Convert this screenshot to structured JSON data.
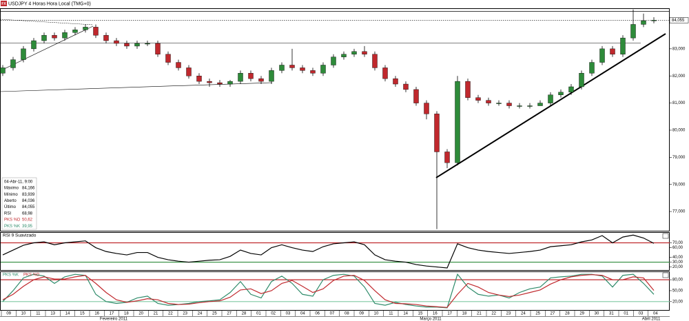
{
  "header": {
    "icon": "FX",
    "title": "USDJPY 4 Horas Hora Local (TMG+0)"
  },
  "info_box": {
    "date": "04-Abr-11, 9:00",
    "rows": [
      {
        "label": "Máximo",
        "value": "84,166"
      },
      {
        "label": "Mínimo",
        "value": "83,939"
      },
      {
        "label": "Aberto",
        "value": "84,036"
      },
      {
        "label": "Último",
        "value": "84,055"
      },
      {
        "label": "RSI",
        "value": "68,98"
      },
      {
        "label": "PKS %D",
        "value": "50,62"
      },
      {
        "label": "PKS %K",
        "value": "39,95"
      }
    ]
  },
  "x_axis": {
    "days": [
      "09",
      "10",
      "11",
      "13",
      "14",
      "15",
      "16",
      "17",
      "18",
      "20",
      "21",
      "22",
      "23",
      "24",
      "25",
      "27",
      "28",
      "01",
      "02",
      "03",
      "04",
      "06",
      "07",
      "08",
      "09",
      "10",
      "11",
      "14",
      "15",
      "16",
      "17",
      "18",
      "21",
      "22",
      "23",
      "24",
      "25",
      "27",
      "28",
      "29",
      "30",
      "31",
      "01",
      "03",
      "04"
    ],
    "months": [
      "Fevereiro 2011",
      "Março 2011",
      "Abril 2011"
    ]
  },
  "chart_data": [
    {
      "type": "candlestick",
      "open": [
        82.1,
        82.3,
        82.6,
        83.0,
        83.3,
        83.5,
        83.4,
        83.6,
        83.7,
        83.8,
        83.5,
        83.3,
        83.2,
        83.1,
        83.2,
        83.2,
        82.8,
        82.5,
        82.3,
        82.0,
        81.8,
        81.75,
        81.7,
        81.8,
        82.1,
        81.9,
        81.8,
        82.2,
        82.4,
        82.3,
        82.2,
        82.1,
        82.4,
        82.7,
        82.8,
        82.9,
        82.8,
        82.3,
        81.9,
        81.7,
        81.5,
        81.0,
        80.6,
        79.2,
        78.8,
        81.8,
        81.2,
        81.1,
        81.0,
        81.0,
        80.9,
        80.9,
        80.9,
        81.0,
        81.3,
        81.4,
        81.6,
        82.1,
        82.5,
        83.0,
        82.8,
        83.4,
        83.9,
        84.036
      ],
      "high": [
        82.4,
        82.7,
        83.1,
        83.4,
        83.6,
        83.6,
        83.7,
        83.8,
        83.9,
        83.9,
        83.6,
        83.4,
        83.3,
        83.3,
        83.3,
        83.3,
        82.9,
        82.6,
        82.4,
        82.1,
        81.9,
        81.85,
        81.85,
        82.2,
        82.2,
        82.0,
        82.3,
        82.5,
        83.0,
        82.4,
        82.3,
        82.5,
        82.8,
        82.9,
        83.0,
        83.1,
        82.9,
        82.4,
        82.0,
        81.8,
        81.6,
        81.1,
        80.7,
        79.3,
        82.0,
        81.9,
        81.3,
        81.2,
        81.1,
        81.1,
        81.0,
        81.0,
        81.1,
        81.4,
        81.5,
        81.7,
        82.2,
        82.6,
        83.1,
        83.1,
        83.5,
        84.45,
        84.3,
        84.166
      ],
      "low": [
        82.0,
        82.2,
        82.5,
        82.9,
        83.2,
        83.3,
        83.3,
        83.5,
        83.6,
        83.4,
        83.2,
        83.1,
        83.0,
        83.0,
        83.1,
        82.7,
        82.4,
        82.2,
        81.9,
        81.7,
        81.6,
        81.6,
        81.6,
        81.7,
        81.8,
        81.7,
        81.7,
        82.1,
        82.2,
        82.1,
        82.0,
        82.0,
        82.3,
        82.6,
        82.7,
        82.7,
        82.2,
        81.8,
        81.6,
        81.4,
        80.9,
        80.4,
        76.35,
        78.6,
        78.7,
        81.1,
        81.0,
        80.9,
        80.9,
        80.8,
        80.8,
        80.8,
        80.9,
        80.9,
        81.2,
        81.3,
        81.5,
        82.0,
        82.4,
        82.7,
        82.7,
        83.3,
        83.8,
        83.939
      ],
      "close": [
        82.3,
        82.6,
        83.0,
        83.3,
        83.5,
        83.4,
        83.6,
        83.7,
        83.8,
        83.5,
        83.3,
        83.2,
        83.1,
        83.2,
        83.2,
        82.8,
        82.5,
        82.3,
        82.0,
        81.8,
        81.75,
        81.7,
        81.8,
        82.1,
        81.9,
        81.8,
        82.2,
        82.4,
        82.3,
        82.2,
        82.1,
        82.4,
        82.7,
        82.8,
        82.9,
        82.8,
        82.3,
        81.9,
        81.7,
        81.5,
        81.0,
        80.6,
        79.2,
        78.8,
        81.8,
        81.2,
        81.1,
        81.0,
        81.0,
        80.9,
        80.9,
        80.9,
        81.0,
        81.3,
        81.4,
        81.6,
        82.1,
        82.5,
        83.0,
        82.8,
        83.4,
        83.9,
        84.036,
        84.055
      ],
      "up_color": "#2e8b3a",
      "down_color": "#c0282d",
      "ylim": [
        76.29,
        84.47
      ],
      "yticks": [
        {
          "value": 77,
          "label": "77,000"
        },
        {
          "value": 78,
          "label": "78,000"
        },
        {
          "value": 79,
          "label": "79,000"
        },
        {
          "value": 80,
          "label": "80,000"
        },
        {
          "value": 81,
          "label": "81,000"
        },
        {
          "value": 82,
          "label": "82,000"
        },
        {
          "value": 83,
          "label": "83,000"
        }
      ],
      "last_price": {
        "value": 84.055,
        "label": "84,055"
      }
    },
    {
      "type": "line",
      "title": "RSI 9 Suavizado",
      "series": [
        {
          "name": "RSI",
          "color": "#000000",
          "values": [
            45,
            55,
            65,
            70,
            72,
            66,
            70,
            72,
            74,
            60,
            52,
            48,
            45,
            50,
            50,
            40,
            35,
            32,
            30,
            32,
            34,
            35,
            42,
            55,
            48,
            45,
            60,
            66,
            60,
            55,
            52,
            62,
            68,
            70,
            72,
            66,
            45,
            35,
            32,
            30,
            25,
            22,
            20,
            18,
            68,
            60,
            55,
            52,
            50,
            48,
            50,
            52,
            55,
            62,
            64,
            66,
            72,
            76,
            85,
            70,
            82,
            86,
            80,
            68.98
          ]
        }
      ],
      "ylim": [
        13.7,
        90.7
      ],
      "yticks": [
        {
          "value": 20,
          "label": "20,00"
        },
        {
          "value": 30,
          "label": "30,00"
        },
        {
          "value": 40,
          "label": "40,00"
        },
        {
          "value": 60,
          "label": "60,00"
        },
        {
          "value": 70,
          "label": "70,00"
        }
      ],
      "levels": [
        {
          "value": 70,
          "color": "#c0282d"
        },
        {
          "value": 30,
          "color": "#2e8b3a"
        }
      ]
    },
    {
      "type": "line",
      "series": [
        {
          "name": "PKS %K",
          "color": "#2e8b6a",
          "values": [
            20,
            50,
            85,
            95,
            90,
            70,
            88,
            95,
            92,
            40,
            20,
            15,
            18,
            30,
            35,
            15,
            10,
            12,
            15,
            20,
            22,
            25,
            45,
            75,
            40,
            30,
            75,
            90,
            70,
            40,
            35,
            80,
            92,
            95,
            90,
            60,
            15,
            10,
            18,
            12,
            8,
            5,
            5,
            3,
            95,
            60,
            40,
            35,
            38,
            30,
            45,
            55,
            60,
            85,
            88,
            90,
            95,
            95,
            90,
            60,
            92,
            95,
            70,
            39.95
          ]
        },
        {
          "name": "PKS %D",
          "color": "#c0282d",
          "values": [
            25,
            40,
            62,
            80,
            88,
            82,
            82,
            88,
            92,
            70,
            45,
            25,
            18,
            22,
            28,
            25,
            15,
            12,
            13,
            17,
            20,
            22,
            32,
            52,
            55,
            42,
            50,
            70,
            78,
            62,
            45,
            55,
            78,
            90,
            92,
            78,
            50,
            25,
            15,
            14,
            12,
            8,
            6,
            4,
            40,
            70,
            60,
            45,
            38,
            34,
            38,
            45,
            52,
            68,
            80,
            88,
            92,
            94,
            92,
            80,
            80,
            88,
            85,
            50.62
          ]
        }
      ],
      "ylim": [
        -3,
        101
      ],
      "yticks": [
        {
          "value": 20,
          "label": "20,00"
        },
        {
          "value": 50,
          "label": "50,00"
        },
        {
          "value": 80,
          "label": "80,00"
        }
      ],
      "levels": [
        {
          "value": 80,
          "color": "#c0282d"
        },
        {
          "value": 20,
          "color": "#7fc8a0"
        }
      ]
    }
  ]
}
